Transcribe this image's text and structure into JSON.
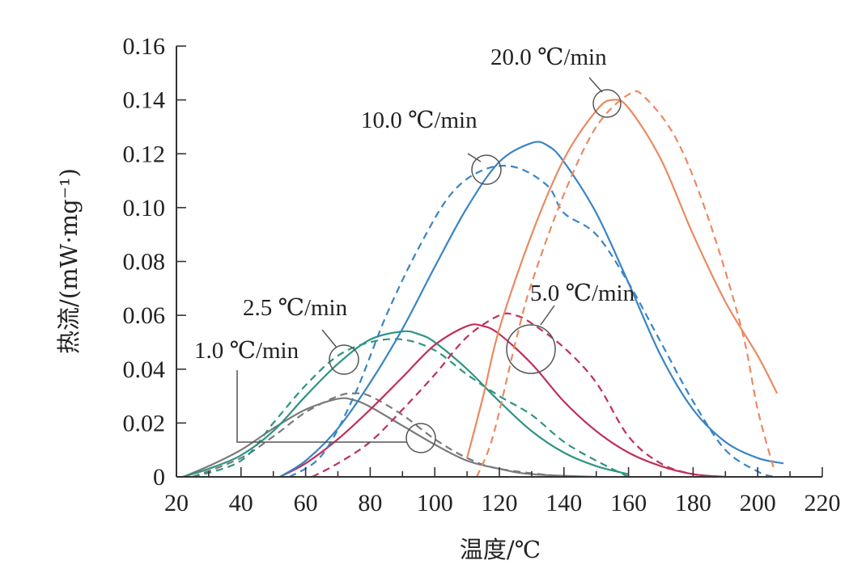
{
  "chart_data": {
    "type": "line",
    "title": "",
    "xlabel": "温度/℃",
    "ylabel": "热流/(mW·mg⁻¹)",
    "xlim": [
      20,
      220
    ],
    "ylim": [
      0,
      0.16
    ],
    "xticks": [
      "20",
      "40",
      "60",
      "80",
      "100",
      "120",
      "140",
      "160",
      "180",
      "200",
      "220"
    ],
    "yticks": [
      "0",
      "0.02",
      "0.04",
      "0.06",
      "0.08",
      "0.10",
      "0.12",
      "0.14",
      "0.16"
    ],
    "grid": false,
    "legend": "none",
    "annotations": [
      "1.0 ℃/min",
      "2.5 ℃/min",
      "5.0 ℃/min",
      "10.0 ℃/min",
      "20.0 ℃/min"
    ],
    "series": [
      {
        "rate": "1.0 ℃/min",
        "style": "solid",
        "color": "#7a7a7a",
        "points": [
          [
            22,
            0
          ],
          [
            30,
            0.004
          ],
          [
            40,
            0.01
          ],
          [
            50,
            0.018
          ],
          [
            60,
            0.025
          ],
          [
            70,
            0.029
          ],
          [
            75,
            0.0285
          ],
          [
            80,
            0.026
          ],
          [
            90,
            0.019
          ],
          [
            100,
            0.012
          ],
          [
            110,
            0.006
          ],
          [
            120,
            0.003
          ],
          [
            130,
            0.001
          ],
          [
            150,
            0
          ]
        ]
      },
      {
        "rate": "1.0 ℃/min",
        "style": "dashed",
        "color": "#7a7a7a",
        "points": [
          [
            25,
            0
          ],
          [
            40,
            0.007
          ],
          [
            50,
            0.015
          ],
          [
            60,
            0.024
          ],
          [
            70,
            0.03
          ],
          [
            75,
            0.031
          ],
          [
            80,
            0.03
          ],
          [
            90,
            0.023
          ],
          [
            100,
            0.014
          ],
          [
            110,
            0.007
          ],
          [
            120,
            0.003
          ],
          [
            140,
            0
          ]
        ]
      },
      {
        "rate": "2.5 ℃/min",
        "style": "solid",
        "color": "#2f9484",
        "points": [
          [
            22,
            0
          ],
          [
            30,
            0.003
          ],
          [
            40,
            0.008
          ],
          [
            50,
            0.017
          ],
          [
            60,
            0.03
          ],
          [
            70,
            0.042
          ],
          [
            80,
            0.051
          ],
          [
            90,
            0.054
          ],
          [
            95,
            0.053
          ],
          [
            100,
            0.05
          ],
          [
            110,
            0.04
          ],
          [
            120,
            0.028
          ],
          [
            130,
            0.017
          ],
          [
            140,
            0.009
          ],
          [
            150,
            0.004
          ],
          [
            160,
            0.001
          ]
        ]
      },
      {
        "rate": "2.5 ℃/min",
        "style": "dashed",
        "color": "#2f9484",
        "points": [
          [
            25,
            0
          ],
          [
            40,
            0.006
          ],
          [
            50,
            0.02
          ],
          [
            60,
            0.034
          ],
          [
            70,
            0.045
          ],
          [
            80,
            0.05
          ],
          [
            90,
            0.051
          ],
          [
            100,
            0.047
          ],
          [
            110,
            0.038
          ],
          [
            120,
            0.03
          ],
          [
            130,
            0.023
          ],
          [
            140,
            0.013
          ],
          [
            150,
            0.006
          ],
          [
            160,
            0
          ]
        ]
      },
      {
        "rate": "5.0 ℃/min",
        "style": "solid",
        "color": "#c0305a",
        "points": [
          [
            52,
            0
          ],
          [
            60,
            0.005
          ],
          [
            70,
            0.014
          ],
          [
            80,
            0.025
          ],
          [
            90,
            0.037
          ],
          [
            100,
            0.049
          ],
          [
            110,
            0.056
          ],
          [
            115,
            0.056
          ],
          [
            120,
            0.053
          ],
          [
            130,
            0.042
          ],
          [
            140,
            0.028
          ],
          [
            150,
            0.017
          ],
          [
            160,
            0.009
          ],
          [
            170,
            0.004
          ],
          [
            180,
            0.001
          ],
          [
            190,
            0
          ]
        ]
      },
      {
        "rate": "5.0 ℃/min",
        "style": "dashed",
        "color": "#c0305a",
        "points": [
          [
            62,
            0
          ],
          [
            70,
            0.005
          ],
          [
            80,
            0.013
          ],
          [
            90,
            0.025
          ],
          [
            100,
            0.038
          ],
          [
            110,
            0.052
          ],
          [
            120,
            0.06
          ],
          [
            125,
            0.06
          ],
          [
            130,
            0.057
          ],
          [
            140,
            0.048
          ],
          [
            150,
            0.035
          ],
          [
            160,
            0.015
          ],
          [
            170,
            0.005
          ],
          [
            180,
            0.001
          ],
          [
            190,
            0
          ]
        ]
      },
      {
        "rate": "10.0 ℃/min",
        "style": "solid",
        "color": "#3a84c3",
        "points": [
          [
            52,
            0
          ],
          [
            60,
            0.006
          ],
          [
            70,
            0.018
          ],
          [
            80,
            0.035
          ],
          [
            90,
            0.055
          ],
          [
            100,
            0.078
          ],
          [
            110,
            0.1
          ],
          [
            120,
            0.117
          ],
          [
            130,
            0.124
          ],
          [
            135,
            0.123
          ],
          [
            140,
            0.117
          ],
          [
            150,
            0.098
          ],
          [
            160,
            0.072
          ],
          [
            170,
            0.045
          ],
          [
            180,
            0.025
          ],
          [
            190,
            0.013
          ],
          [
            200,
            0.007
          ],
          [
            208,
            0.005
          ]
        ]
      },
      {
        "rate": "10.0 ℃/min",
        "style": "dashed",
        "color": "#3a84c3",
        "points": [
          [
            55,
            0
          ],
          [
            65,
            0.008
          ],
          [
            75,
            0.03
          ],
          [
            85,
            0.06
          ],
          [
            95,
            0.085
          ],
          [
            105,
            0.105
          ],
          [
            115,
            0.114
          ],
          [
            125,
            0.115
          ],
          [
            135,
            0.108
          ],
          [
            140,
            0.098
          ],
          [
            150,
            0.09
          ],
          [
            160,
            0.072
          ],
          [
            170,
            0.05
          ],
          [
            180,
            0.028
          ],
          [
            190,
            0.01
          ],
          [
            200,
            0.002
          ],
          [
            205,
            0
          ]
        ]
      },
      {
        "rate": "20.0 ℃/min",
        "style": "solid",
        "color": "#ea8a62",
        "points": [
          [
            110,
            0.007
          ],
          [
            115,
            0.03
          ],
          [
            120,
            0.055
          ],
          [
            130,
            0.09
          ],
          [
            140,
            0.118
          ],
          [
            150,
            0.136
          ],
          [
            155,
            0.14
          ],
          [
            160,
            0.137
          ],
          [
            170,
            0.118
          ],
          [
            180,
            0.09
          ],
          [
            190,
            0.065
          ],
          [
            200,
            0.045
          ],
          [
            206,
            0.031
          ]
        ]
      },
      {
        "rate": "20.0 ℃/min",
        "style": "dashed",
        "color": "#ea8a62",
        "points": [
          [
            113,
            0
          ],
          [
            118,
            0.015
          ],
          [
            125,
            0.05
          ],
          [
            130,
            0.072
          ],
          [
            140,
            0.105
          ],
          [
            150,
            0.13
          ],
          [
            160,
            0.142
          ],
          [
            165,
            0.141
          ],
          [
            175,
            0.125
          ],
          [
            185,
            0.095
          ],
          [
            195,
            0.055
          ],
          [
            200,
            0.025
          ],
          [
            205,
            0.003
          ]
        ]
      }
    ]
  }
}
